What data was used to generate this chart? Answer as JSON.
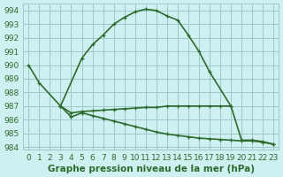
{
  "xlim": [
    -0.5,
    23.5
  ],
  "ylim": [
    983.8,
    994.5
  ],
  "yticks": [
    984,
    985,
    986,
    987,
    988,
    989,
    990,
    991,
    992,
    993,
    994
  ],
  "xticks": [
    0,
    1,
    2,
    3,
    4,
    5,
    6,
    7,
    8,
    9,
    10,
    11,
    12,
    13,
    14,
    15,
    16,
    17,
    18,
    19,
    20,
    21,
    22,
    23
  ],
  "xlabel": "Graphe pression niveau de la mer (hPa)",
  "bg_color": "#cff0f0",
  "grid_color": "#a0c8c8",
  "line_color": "#2d6a2d",
  "linewidth": 1.2,
  "tick_label_fontsize": 6.5,
  "xlabel_fontsize": 7.5,
  "main_x": [
    0,
    1,
    3,
    5,
    6,
    7,
    8,
    9,
    10,
    11,
    12,
    13,
    14,
    15,
    16,
    17,
    19
  ],
  "main_y": [
    990.0,
    988.7,
    987.0,
    990.5,
    991.5,
    992.2,
    993.0,
    993.5,
    993.9,
    994.1,
    994.0,
    993.6,
    993.3,
    992.2,
    991.0,
    989.5,
    987.0
  ],
  "flat_x": [
    3,
    4,
    5,
    6,
    7,
    8,
    9,
    10,
    11,
    12,
    13,
    14,
    15,
    16,
    17,
    18,
    19,
    20,
    21,
    22,
    23
  ],
  "flat_y": [
    987.0,
    986.5,
    986.6,
    986.65,
    986.7,
    986.75,
    986.8,
    986.85,
    986.9,
    986.9,
    987.0,
    987.0,
    987.0,
    987.0,
    987.0,
    987.0,
    987.0,
    984.5,
    984.5,
    984.4,
    984.2
  ],
  "low_x": [
    3,
    4,
    5,
    6,
    7,
    8,
    9,
    10,
    11,
    12,
    13,
    14,
    15,
    16,
    17,
    18,
    19,
    20,
    21,
    22,
    23
  ],
  "low_y": [
    987.0,
    986.2,
    986.5,
    986.3,
    986.1,
    985.9,
    985.7,
    985.5,
    985.3,
    985.1,
    984.95,
    984.85,
    984.75,
    984.65,
    984.6,
    984.55,
    984.5,
    984.45,
    984.45,
    984.35,
    984.2
  ]
}
